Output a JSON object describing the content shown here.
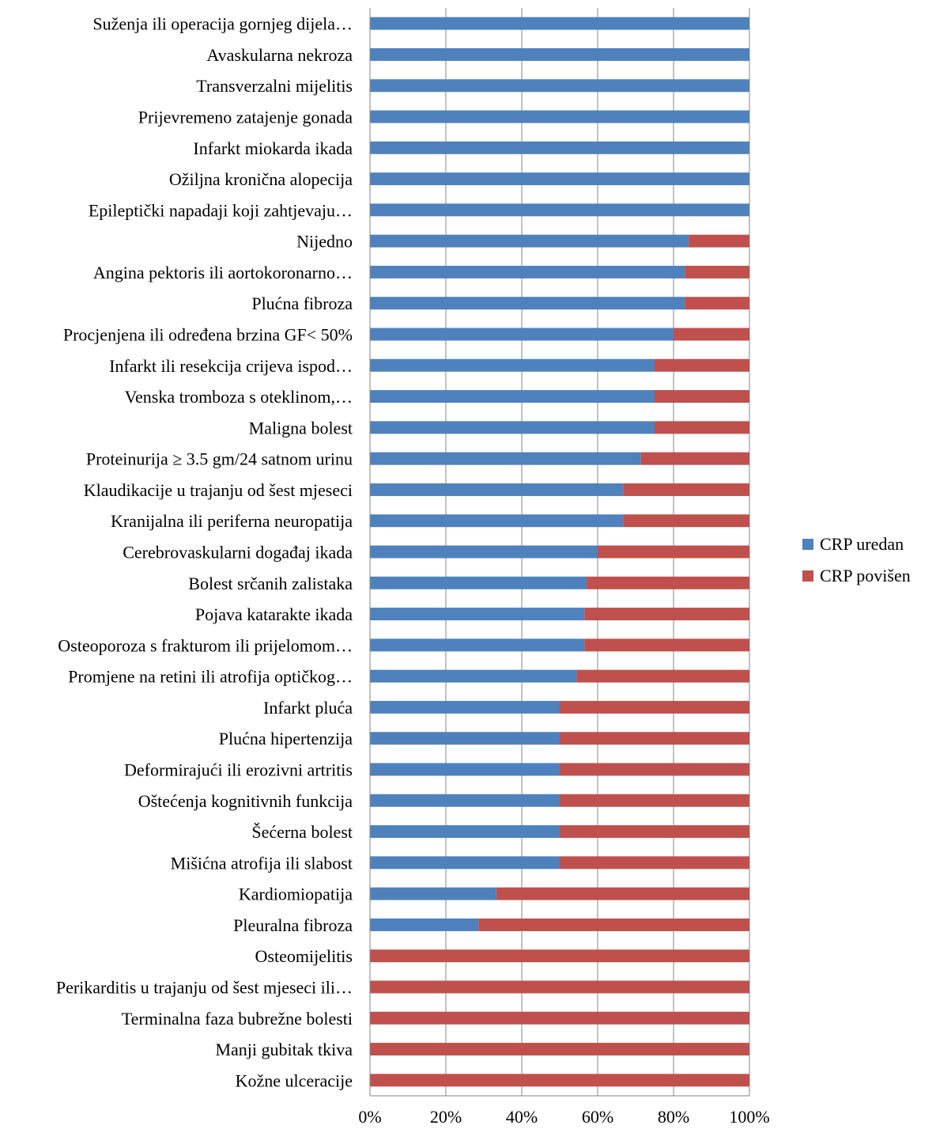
{
  "chart_data": {
    "type": "bar",
    "orientation": "horizontal",
    "stacked": "percent",
    "categories": [
      "Suženja ili operacija gornjeg dijela…",
      "Avaskularna nekroza",
      "Transverzalni mijelitis",
      "Prijevremeno zatajenje gonada",
      "Infarkt miokarda ikada",
      "Ožiljna kronična alopecija",
      "Epileptički napadaji koji zahtjevaju…",
      "Nijedno",
      "Angina pektoris ili aortokoronarno…",
      "Plućna fibroza",
      "Procjenjena ili određena brzina GF< 50%",
      "Infarkt ili resekcija crijeva ispod…",
      "Venska tromboza s oteklinom,…",
      "Maligna bolest",
      "Proteinurija ≥ 3.5 gm/24 satnom urinu",
      "Klaudikacije u trajanju od šest mjeseci",
      "Kranijalna ili periferna neuropatija",
      "Cerebrovaskularni događaj ikada",
      "Bolest srčanih zalistaka",
      "Pojava katarakte ikada",
      "Osteoporoza s frakturom ili prijelomom…",
      "Promjene na retini ili atrofija optičkog…",
      "Infarkt pluća",
      "Plućna hipertenzija",
      "Deformirajući ili erozivni artritis",
      "Oštećenja kognitivnih funkcija",
      "Šećerna bolest",
      "Mišićna atrofija ili slabost",
      "Kardiomiopatija",
      "Pleuralna fibroza",
      "Osteomijelitis",
      "Perikarditis u trajanju od šest mjeseci ili…",
      "Terminalna faza bubrežne bolesti",
      "Manji gubitak tkiva",
      "Kožne ulceracije"
    ],
    "series": [
      {
        "name": "CRP uredan",
        "color": "#4F81BD",
        "values": [
          100,
          100,
          100,
          100,
          100,
          100,
          100,
          84,
          83,
          83,
          80,
          75,
          75,
          75,
          71.4,
          66.7,
          66.7,
          60,
          57.1,
          56.5,
          56.5,
          54.5,
          50,
          50,
          50,
          50,
          50,
          50,
          33.3,
          28.6,
          0,
          0,
          0,
          0,
          0
        ]
      },
      {
        "name": "CRP povišen",
        "color": "#C0504D",
        "values": [
          0,
          0,
          0,
          0,
          0,
          0,
          0,
          16,
          17,
          17,
          20,
          25,
          25,
          25,
          28.6,
          33.3,
          33.3,
          40,
          42.9,
          43.5,
          43.5,
          45.5,
          50,
          50,
          50,
          50,
          50,
          50,
          66.7,
          71.4,
          100,
          100,
          100,
          100,
          100
        ]
      }
    ],
    "x_ticks": [
      "0%",
      "20%",
      "40%",
      "60%",
      "80%",
      "100%"
    ],
    "xlim": [
      0,
      100
    ],
    "grid": "vertical",
    "legend_position": "right",
    "title": "",
    "xlabel": "",
    "ylabel": ""
  }
}
